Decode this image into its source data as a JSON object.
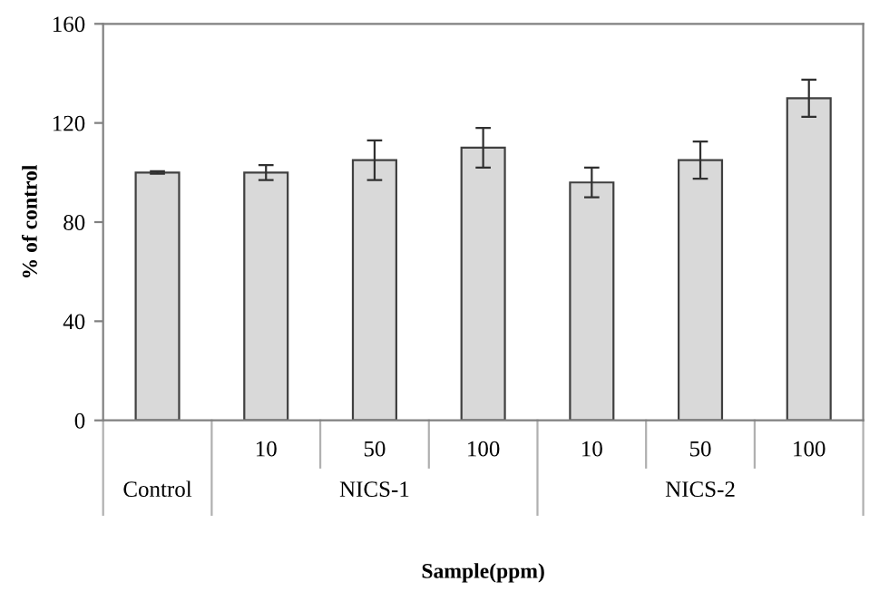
{
  "chart_data": {
    "type": "bar",
    "categories": [
      null,
      "10",
      "50",
      "100",
      "10",
      "50",
      "100"
    ],
    "values": [
      100,
      100,
      105,
      110,
      96,
      105,
      130
    ],
    "errors": [
      0.5,
      3,
      8,
      8,
      6,
      7.5,
      7.5
    ],
    "color": "#d9d9d9",
    "xlabel": "Sample(ppm)",
    "ylabel": "% of control",
    "ylim": [
      0,
      160
    ],
    "yticks": [
      0,
      40,
      80,
      120,
      160
    ],
    "annotations": [
      "Control",
      "NICS-1",
      "NICS-2"
    ],
    "grid": false
  }
}
